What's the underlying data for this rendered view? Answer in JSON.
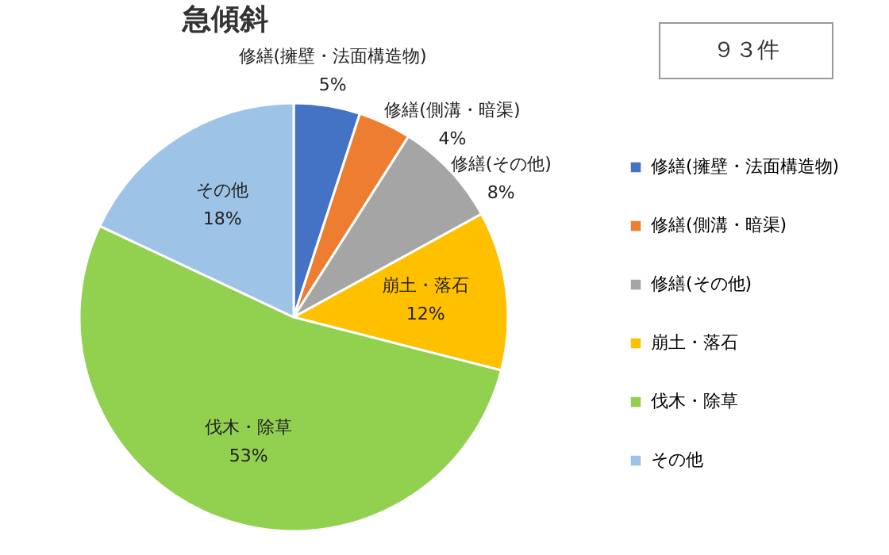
{
  "chart_data": {
    "type": "pie",
    "title": "急傾斜",
    "categories": [
      "修繕(擁壁・法面構造物)",
      "修繕(側溝・暗渠)",
      "修繕(その他)",
      "崩土・落石",
      "伐木・除草",
      "その他"
    ],
    "values": [
      5,
      4,
      8,
      12,
      53,
      18
    ],
    "colors": [
      "#4472c4",
      "#ed7d31",
      "#a5a5a5",
      "#ffc000",
      "#92d050",
      "#9dc3e6"
    ],
    "value_labels": [
      "5%",
      "4%",
      "8%",
      "12%",
      "53%",
      "18%"
    ],
    "annotations": [
      "９３件"
    ],
    "legend": "right"
  }
}
